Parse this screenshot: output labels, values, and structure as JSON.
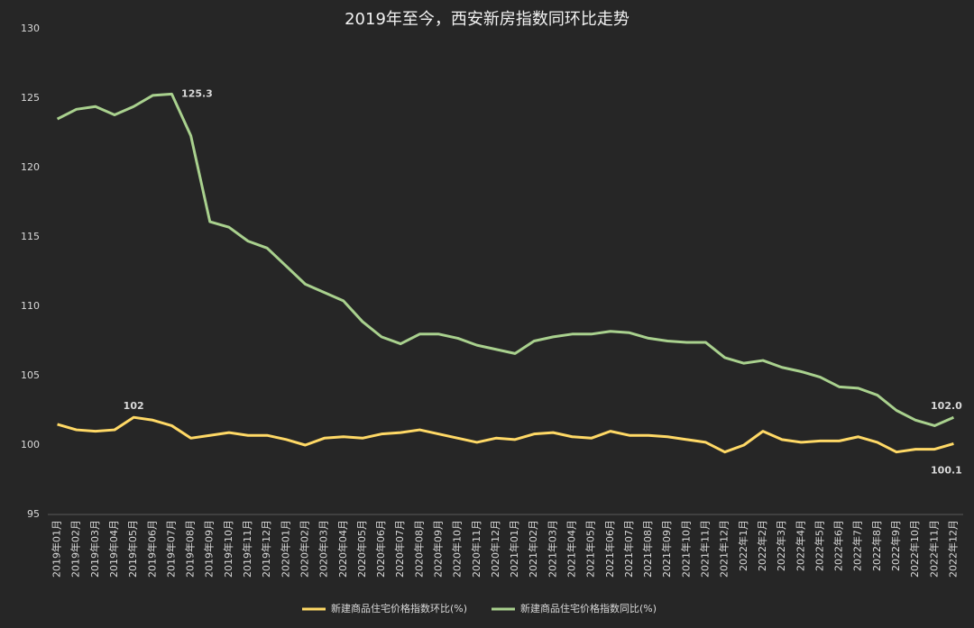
{
  "chart_data": {
    "type": "line",
    "title": "2019年至今，西安新房指数同环比走势",
    "categories": [
      "2019年01月",
      "2019年02月",
      "2019年03月",
      "2019年04月",
      "2019年05月",
      "2019年06月",
      "2019年07月",
      "2019年08月",
      "2019年09月",
      "2019年10月",
      "2019年11月",
      "2019年12月",
      "2020年01月",
      "2020年02月",
      "2020年03月",
      "2020年04月",
      "2020年05月",
      "2020年06月",
      "2020年07月",
      "2020年08月",
      "2020年09月",
      "2020年10月",
      "2020年11月",
      "2020年12月",
      "2021年01月",
      "2021年02月",
      "2021年03月",
      "2021年04月",
      "2021年05月",
      "2021年06月",
      "2021年07月",
      "2021年08月",
      "2021年09月",
      "2021年10月",
      "2021年11月",
      "2021年12月",
      "2022年1月",
      "2022年2月",
      "2022年3月",
      "2022年4月",
      "2022年5月",
      "2022年6月",
      "2022年7月",
      "2022年8月",
      "2022年9月",
      "2022年10月",
      "2022年11月",
      "2022年12月"
    ],
    "series": [
      {
        "name": "新建商品住宅价格指数环比(%)",
        "color": "#ffd966",
        "values": [
          101.5,
          101.1,
          101.0,
          101.1,
          102.0,
          101.8,
          101.4,
          100.5,
          100.7,
          100.9,
          100.7,
          100.7,
          100.4,
          100.0,
          100.5,
          100.6,
          100.5,
          100.8,
          100.9,
          101.1,
          100.8,
          100.5,
          100.2,
          100.5,
          100.4,
          100.8,
          100.9,
          100.6,
          100.5,
          101.0,
          100.7,
          100.7,
          100.6,
          100.4,
          100.2,
          99.5,
          100.0,
          101.0,
          100.4,
          100.2,
          100.3,
          100.3,
          100.6,
          100.2,
          99.5,
          99.7,
          99.7,
          100.1
        ],
        "value_labels": [
          null,
          null,
          null,
          null,
          "102",
          null,
          null,
          null,
          null,
          null,
          null,
          null,
          null,
          null,
          null,
          null,
          null,
          null,
          null,
          null,
          null,
          null,
          null,
          null,
          null,
          null,
          null,
          null,
          null,
          null,
          null,
          null,
          null,
          null,
          null,
          null,
          null,
          null,
          null,
          null,
          null,
          null,
          null,
          null,
          null,
          null,
          null,
          "100.1"
        ]
      },
      {
        "name": "新建商品住宅价格指数同比(%)",
        "color": "#a9d18e",
        "values": [
          123.5,
          124.2,
          124.4,
          123.8,
          124.4,
          125.2,
          125.3,
          122.3,
          116.1,
          115.7,
          114.7,
          114.2,
          112.9,
          111.6,
          111.0,
          110.4,
          108.9,
          107.8,
          107.3,
          108.0,
          108.0,
          107.7,
          107.2,
          106.9,
          106.6,
          107.5,
          107.8,
          108.0,
          108.0,
          108.2,
          108.1,
          107.7,
          107.5,
          107.4,
          107.4,
          106.3,
          105.9,
          106.1,
          105.6,
          105.3,
          104.9,
          104.2,
          104.1,
          103.6,
          102.5,
          101.8,
          101.4,
          102.0
        ],
        "value_labels": [
          null,
          null,
          null,
          null,
          null,
          null,
          "125.3",
          null,
          null,
          null,
          null,
          null,
          null,
          null,
          null,
          null,
          null,
          null,
          null,
          null,
          null,
          null,
          null,
          null,
          null,
          null,
          null,
          null,
          null,
          null,
          null,
          null,
          null,
          null,
          null,
          null,
          null,
          null,
          null,
          null,
          null,
          null,
          null,
          null,
          null,
          null,
          null,
          "102.0"
        ]
      }
    ],
    "ylim": [
      95,
      130
    ],
    "yticks": [
      95,
      100,
      105,
      110,
      115,
      120,
      125,
      130
    ],
    "grid": false
  }
}
